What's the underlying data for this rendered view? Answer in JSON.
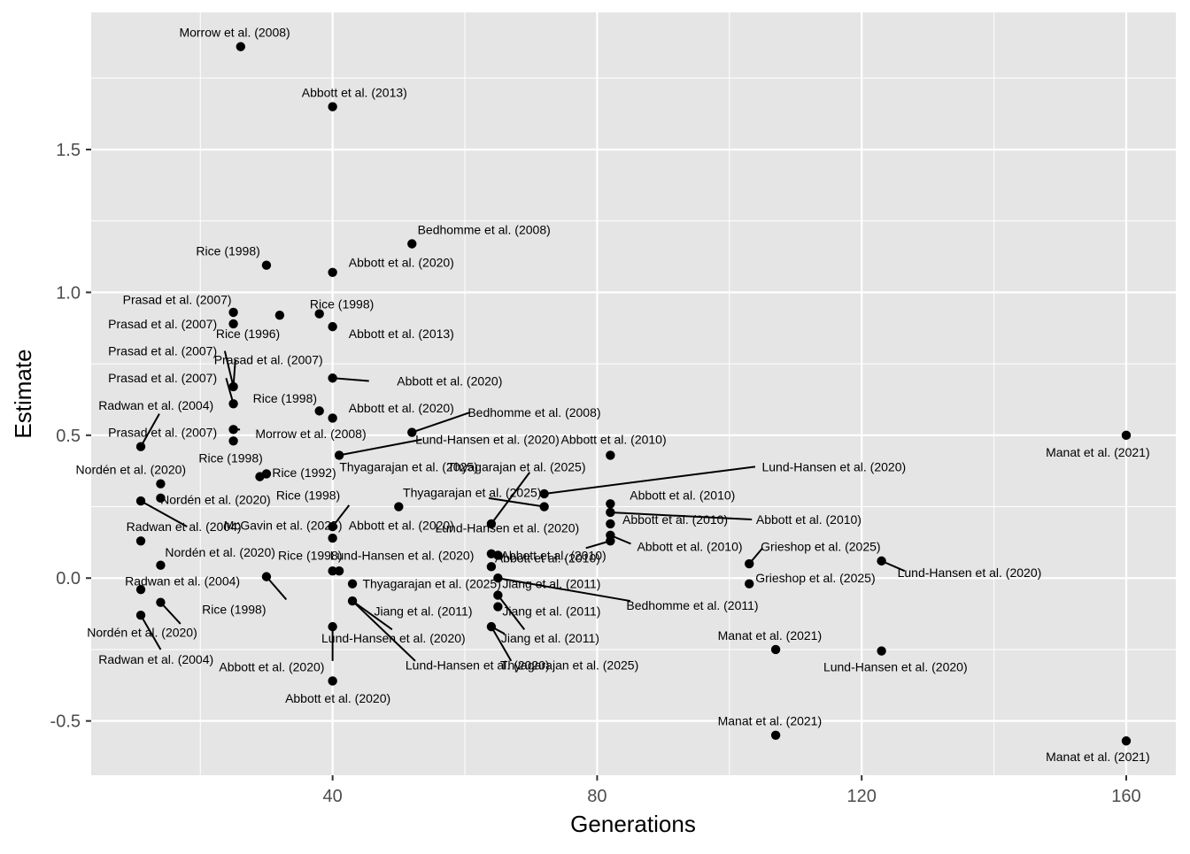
{
  "chart_data": {
    "type": "scatter",
    "title": "",
    "xlabel": "Generations",
    "ylabel": "Estimate",
    "xlim": [
      3.5,
      167.5
    ],
    "ylim": [
      -0.69,
      1.98
    ],
    "xticks": [
      40,
      80,
      120,
      160
    ],
    "xtick_labels": [
      "40",
      "80",
      "120",
      "160"
    ],
    "yticks": [
      -0.5,
      0.0,
      0.5,
      1.0,
      1.5
    ],
    "ytick_labels": [
      "-0.5",
      "0.0",
      "0.5",
      "1.0",
      "1.5"
    ],
    "grid": true,
    "panel_color": "#e5e5e5",
    "grid_color": "#ffffff",
    "point_color": "#000000",
    "points": [
      {
        "x": 26.1,
        "y": 1.86,
        "label": "Morrow et al. (2008)",
        "lx": 25.2,
        "ly": 1.91
      },
      {
        "x": 40,
        "y": 1.65,
        "label": "Abbott et al. (2013)",
        "lx": 43.3,
        "ly": 1.7
      },
      {
        "x": 52,
        "y": 1.17,
        "label": "Bedhomme et al. (2008)",
        "lx": 62.9,
        "ly": 1.22
      },
      {
        "x": 30,
        "y": 1.095,
        "label": "Rice (1998)",
        "lx": 24.2,
        "ly": 1.145
      },
      {
        "x": 40,
        "y": 1.07,
        "label": "Abbott et al. (2020)",
        "lx": 50.4,
        "ly": 1.105
      },
      {
        "x": 25,
        "y": 0.93,
        "label": "Prasad et al. (2007)",
        "lx": 16.5,
        "ly": 0.975
      },
      {
        "x": 32,
        "y": 0.92,
        "label": "Rice (1996)",
        "lx": 27.2,
        "ly": 0.855
      },
      {
        "x": 38,
        "y": 0.925,
        "label": "Rice (1998)",
        "lx": 41.4,
        "ly": 0.96
      },
      {
        "x": 25,
        "y": 0.89,
        "label": "Prasad et al. (2007)",
        "lx": 14.3,
        "ly": 0.89
      },
      {
        "x": 40,
        "y": 0.88,
        "label": "Abbott et al. (2013)",
        "lx": 50.4,
        "ly": 0.855
      },
      {
        "x": 25,
        "y": 0.67,
        "label": "Prasad et al. (2007)",
        "lx": 14.3,
        "ly": 0.795,
        "sx": 23.7,
        "sy": 0.795
      },
      {
        "x": 25,
        "y": 0.67,
        "label": "Prasad et al. (2007)",
        "lx": 30.3,
        "ly": 0.765,
        "sx": 25.3,
        "sy": 0.765
      },
      {
        "x": 25,
        "y": 0.61,
        "label": "Prasad et al. (2007)",
        "lx": 14.3,
        "ly": 0.7,
        "sx": 23.9,
        "sy": 0.7
      },
      {
        "x": 40,
        "y": 0.7,
        "label": "Abbott et al. (2020)",
        "lx": 57.7,
        "ly": 0.69,
        "sx": 45.5,
        "sy": 0.69
      },
      {
        "x": 38,
        "y": 0.585,
        "label": "Rice (1998)",
        "lx": 32.8,
        "ly": 0.63
      },
      {
        "x": 40,
        "y": 0.56,
        "label": "Abbott et al. (2020)",
        "lx": 50.4,
        "ly": 0.595
      },
      {
        "x": 52,
        "y": 0.51,
        "label": "Bedhomme et al. (2008)",
        "lx": 70.5,
        "ly": 0.58,
        "sx": 60.8,
        "sy": 0.58
      },
      {
        "x": 25,
        "y": 0.52,
        "label": "Morrow et al. (2008)",
        "lx": 36.7,
        "ly": 0.505,
        "sx": 26.0,
        "sy": 0.52
      },
      {
        "x": 25,
        "y": 0.48,
        "label": "Prasad et al. (2007)",
        "lx": 14.3,
        "ly": 0.51
      },
      {
        "x": 41,
        "y": 0.43,
        "label": "Lund-Hansen et al. (2020)",
        "lx": 63.4,
        "ly": 0.485,
        "sx": 53.5,
        "sy": 0.485
      },
      {
        "x": 11,
        "y": 0.46,
        "label": "Radwan et al. (2004)",
        "lx": 13.3,
        "ly": 0.605,
        "sx": 13.8,
        "sy": 0.575
      },
      {
        "x": 82,
        "y": 0.43,
        "label": "Abbott et al. (2010)",
        "lx": 82.5,
        "ly": 0.485
      },
      {
        "x": 160,
        "y": 0.5,
        "label": "Manat et al. (2021)",
        "lx": 155.7,
        "ly": 0.44
      },
      {
        "x": 30,
        "y": 0.365,
        "label": "Rice (1992)",
        "lx": 35.7,
        "ly": 0.37
      },
      {
        "x": 29,
        "y": 0.355,
        "label": "Rice (1998)",
        "lx": 24.6,
        "ly": 0.42
      },
      {
        "x": 41,
        "y": 0.43,
        "label": "Thyagarajan et al. (2025)",
        "lx": 51.5,
        "ly": 0.39,
        "sx": 41.0,
        "sy": 0.43
      },
      {
        "x": 64,
        "y": 0.19,
        "label": "Thyagarajan et al. (2025)",
        "lx": 67.8,
        "ly": 0.39,
        "sx": 69.8,
        "sy": 0.37
      },
      {
        "x": 14,
        "y": 0.33,
        "label": "Nordén et al. (2020)",
        "lx": 9.5,
        "ly": 0.38
      },
      {
        "x": 14,
        "y": 0.28,
        "label": "Nordén et al. (2020)",
        "lx": 22.3,
        "ly": 0.275
      },
      {
        "x": 72,
        "y": 0.295,
        "label": "Lund-Hansen et al. (2020)",
        "lx": 115.8,
        "ly": 0.39,
        "sx": 103.9,
        "sy": 0.39
      },
      {
        "x": 72,
        "y": 0.25,
        "label": "Thyagarajan et al. (2025)",
        "lx": 61.1,
        "ly": 0.3,
        "sx": 63.6,
        "sy": 0.28
      },
      {
        "x": 82,
        "y": 0.26,
        "label": "Abbott et al. (2010)",
        "lx": 92.9,
        "ly": 0.29
      },
      {
        "x": 50,
        "y": 0.25,
        "label": "",
        "lx": 50,
        "ly": 0.25
      },
      {
        "x": 11,
        "y": 0.27,
        "label": "Radwan et al. (2004)",
        "lx": 17.5,
        "ly": 0.18,
        "sx": 18.0,
        "sy": 0.18
      },
      {
        "x": 40,
        "y": 0.18,
        "label": "Rice (1998)",
        "lx": 36.3,
        "ly": 0.29,
        "sx": 42.5,
        "sy": 0.255
      },
      {
        "x": 40,
        "y": 0.18,
        "label": "McGavin et al. (2025)",
        "lx": 32.5,
        "ly": 0.185,
        "sx": 40.0,
        "sy": 0.18
      },
      {
        "x": 40,
        "y": 0.14,
        "label": "Abbott et al. (2020)",
        "lx": 50.4,
        "ly": 0.185
      },
      {
        "x": 82,
        "y": 0.23,
        "label": "Abbott et al. (2010)",
        "lx": 112.0,
        "ly": 0.205,
        "sx": 103.4,
        "sy": 0.205
      },
      {
        "x": 82,
        "y": 0.19,
        "label": "Abbott et al. (2010)",
        "lx": 91.8,
        "ly": 0.205
      },
      {
        "x": 64,
        "y": 0.19,
        "label": "Lund-Hansen et al. (2020)",
        "lx": 66.4,
        "ly": 0.175
      },
      {
        "x": 11,
        "y": 0.13,
        "label": "Nordén et al. (2020)",
        "lx": 23.0,
        "ly": 0.09
      },
      {
        "x": 82,
        "y": 0.15,
        "label": "Abbott et al. (2010)",
        "lx": 94.0,
        "ly": 0.11,
        "sx": 85.1,
        "sy": 0.12
      },
      {
        "x": 82,
        "y": 0.13,
        "label": "Abbott et al. (2010)",
        "lx": 73.4,
        "ly": 0.08,
        "sx": 78.3,
        "sy": 0.105
      },
      {
        "x": 103,
        "y": 0.05,
        "label": "Grieshop et al. (2025)",
        "lx": 113.8,
        "ly": 0.11,
        "sx": 105.0,
        "sy": 0.105
      },
      {
        "x": 123,
        "y": 0.06,
        "label": "Lund-Hansen et al. (2020)",
        "lx": 136.3,
        "ly": 0.02,
        "sx": 126.5,
        "sy": 0.025
      },
      {
        "x": 40,
        "y": 0.025,
        "label": "Rice (1998)",
        "lx": 36.6,
        "ly": 0.08,
        "sx": 40.0,
        "sy": 0.025
      },
      {
        "x": 41,
        "y": 0.025,
        "label": "Lund-Hansen et al. (2020)",
        "lx": 50.5,
        "ly": 0.08,
        "sx": 41.0,
        "sy": 0.025
      },
      {
        "x": 64,
        "y": 0.085,
        "label": "Abbott et al. (2010)",
        "lx": 72.5,
        "ly": 0.07
      },
      {
        "x": 65,
        "y": 0.08,
        "label": "",
        "lx": 65,
        "ly": 0.08
      },
      {
        "x": 64,
        "y": 0.04,
        "label": "",
        "lx": 64,
        "ly": 0.04
      },
      {
        "x": 14,
        "y": 0.045,
        "label": "",
        "lx": 14,
        "ly": 0.045
      },
      {
        "x": 30,
        "y": 0.005,
        "label": "Rice (1998)",
        "lx": 25.1,
        "ly": -0.11,
        "sx": 33.0,
        "sy": -0.075
      },
      {
        "x": 43,
        "y": -0.02,
        "label": "Thyagarajan et al. (2025)",
        "lx": 55.0,
        "ly": -0.02,
        "sx": 43.0,
        "sy": -0.02
      },
      {
        "x": 103,
        "y": -0.02,
        "label": "Grieshop et al. (2025)",
        "lx": 113.0,
        "ly": 0.0
      },
      {
        "x": 65,
        "y": 0.0,
        "label": "Jiang et al. (2011)",
        "lx": 73.1,
        "ly": -0.02
      },
      {
        "x": 11,
        "y": -0.04,
        "label": "Radwan et al. (2004)",
        "lx": 17.3,
        "ly": -0.01
      },
      {
        "x": 65,
        "y": 0.0,
        "label": "Bedhomme et al. (2011)",
        "lx": 94.4,
        "ly": -0.095,
        "sx": 85.0,
        "sy": -0.08
      },
      {
        "x": 43,
        "y": -0.08,
        "label": "Jiang et al. (2011)",
        "lx": 53.7,
        "ly": -0.115,
        "sx": 49.0,
        "sy": -0.18
      },
      {
        "x": 65,
        "y": -0.06,
        "label": "Jiang et al. (2011)",
        "lx": 73.1,
        "ly": -0.115,
        "sx": 69.0,
        "sy": -0.18
      },
      {
        "x": 65,
        "y": -0.1,
        "label": "",
        "lx": 65,
        "ly": -0.1
      },
      {
        "x": 14,
        "y": -0.085,
        "label": "Nordén et al. (2020)",
        "lx": 11.2,
        "ly": -0.19,
        "sx": 17.0,
        "sy": -0.16
      },
      {
        "x": 11,
        "y": -0.13,
        "label": "Radwan et al. (2004)",
        "lx": 13.3,
        "ly": -0.285,
        "sx": 14.0,
        "sy": -0.25
      },
      {
        "x": 40,
        "y": -0.17,
        "label": "Lund-Hansen et al. (2020)",
        "lx": 49.2,
        "ly": -0.21
      },
      {
        "x": 64,
        "y": -0.17,
        "label": "Jiang et al. (2011)",
        "lx": 72.9,
        "ly": -0.21,
        "sx": 66.0,
        "sy": -0.195
      },
      {
        "x": 43,
        "y": -0.08,
        "label": "Lund-Hansen et al. (2020)",
        "lx": 61.9,
        "ly": -0.305,
        "sx": 52.5,
        "sy": -0.29
      },
      {
        "x": 64,
        "y": -0.17,
        "label": "Thyagarajan et al. (2025)",
        "lx": 75.8,
        "ly": -0.305,
        "sx": 67.0,
        "sy": -0.29
      },
      {
        "x": 40,
        "y": -0.17,
        "label": "Abbott et al. (2020)",
        "lx": 30.8,
        "ly": -0.31,
        "sx": 40.0,
        "sy": -0.29
      },
      {
        "x": 107,
        "y": -0.25,
        "label": "Manat et al. (2021)",
        "lx": 106.1,
        "ly": -0.2
      },
      {
        "x": 123,
        "y": -0.255,
        "label": "Lund-Hansen et al. (2020)",
        "lx": 125.1,
        "ly": -0.31
      },
      {
        "x": 40,
        "y": -0.36,
        "label": "Abbott et al. (2020)",
        "lx": 40.8,
        "ly": -0.42
      },
      {
        "x": 107,
        "y": -0.55,
        "label": "Manat et al. (2021)",
        "lx": 106.1,
        "ly": -0.5
      },
      {
        "x": 160,
        "y": -0.57,
        "label": "Manat et al. (2021)",
        "lx": 155.7,
        "ly": -0.625
      }
    ]
  }
}
